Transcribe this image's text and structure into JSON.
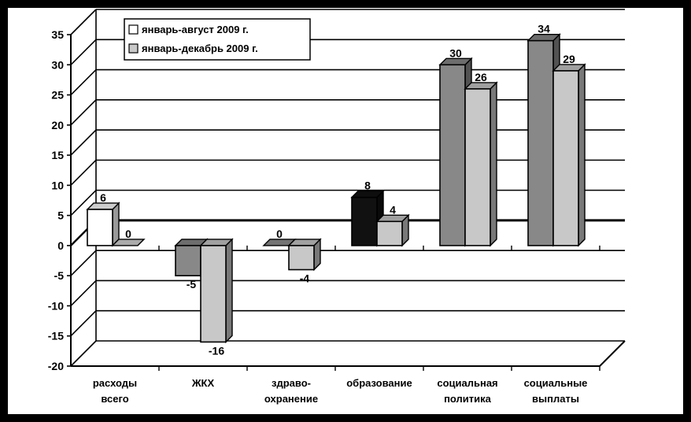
{
  "chart_data": {
    "type": "bar",
    "title": "",
    "xlabel": "",
    "ylabel": "",
    "ylim": [
      -20,
      35
    ],
    "yticks": [
      35,
      30,
      25,
      20,
      15,
      10,
      5,
      0,
      -5,
      -10,
      -15,
      -20
    ],
    "grid": true,
    "legend_position": "top-left",
    "categories": [
      [
        "расходы",
        "всего"
      ],
      [
        "ЖКХ"
      ],
      [
        "здраво-",
        "охранение"
      ],
      [
        "образование"
      ],
      [
        "социальная",
        "политика"
      ],
      [
        "социальные",
        "выплаты"
      ]
    ],
    "series": [
      {
        "name": "январь-август 2009 г.",
        "values": [
          6,
          -5,
          0,
          8,
          30,
          34
        ],
        "labels": [
          "6",
          "-5",
          "0",
          "8",
          "30",
          "34"
        ]
      },
      {
        "name": "январь-декабрь 2009 г.",
        "values": [
          0,
          -16,
          -4,
          4,
          26,
          29
        ],
        "labels": [
          "0",
          "-16",
          "-4",
          "4",
          "26",
          "29"
        ]
      }
    ],
    "bar_colors": [
      [
        "#ffffff",
        "#888888",
        "#888888",
        "#111111",
        "#888888",
        "#888888"
      ],
      [
        "#c8c8c8",
        "#c8c8c8",
        "#c8c8c8",
        "#c8c8c8",
        "#c8c8c8",
        "#c8c8c8"
      ]
    ],
    "legend_colors": [
      "#ffffff",
      "#c8c8c8"
    ]
  }
}
